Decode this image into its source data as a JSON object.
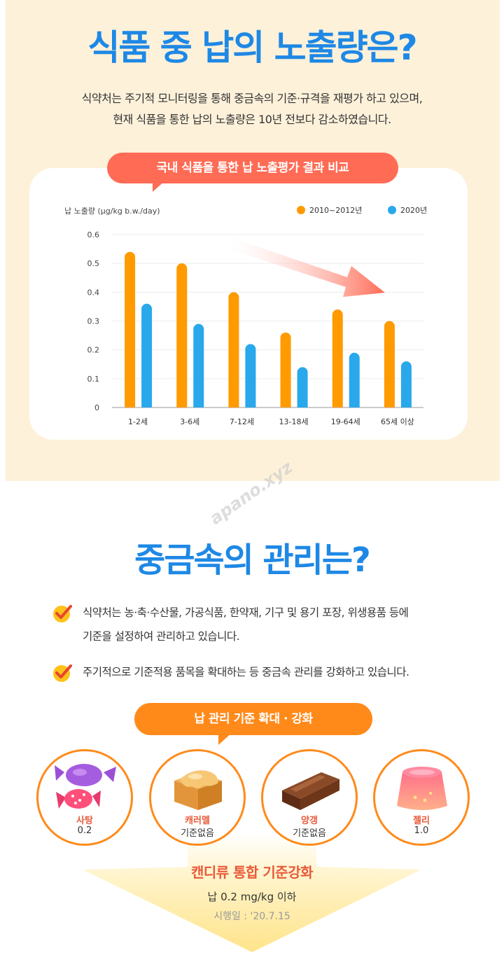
{
  "section1": {
    "title": "식품 중 납의 노출량은?",
    "intro_line1": "식약처는 주기적 모니터링을 통해 중금속의 기준·규격을 재평가 하고 있으며,",
    "intro_line2": "현재 식품을 통한 납의 노출량은 10년 전보다 감소하였습니다.",
    "chart_pill": "국내 식품을 통한 납 노출평가 결과 비교"
  },
  "chart_data": {
    "type": "bar",
    "ylabel": "납 노출량 (μg/kg b.w./day)",
    "xlabel": "",
    "categories": [
      "1-2세",
      "3-6세",
      "7-12세",
      "13-18세",
      "19-64세",
      "65세 이상"
    ],
    "ylim": [
      0,
      0.6
    ],
    "yticks": [
      "0",
      "0.1",
      "0.2",
      "0.3",
      "0.4",
      "0.5",
      "0.6"
    ],
    "legend_position": "top-right",
    "grid": true,
    "series": [
      {
        "name": "2010~2012년",
        "color": "#ff9a00",
        "values": [
          0.54,
          0.5,
          0.4,
          0.26,
          0.34,
          0.3
        ]
      },
      {
        "name": "2020년",
        "color": "#29a8ec",
        "values": [
          0.36,
          0.29,
          0.22,
          0.14,
          0.19,
          0.16
        ]
      }
    ],
    "trend_arrow_color": "#ff6b55"
  },
  "watermark": "apano.xyz",
  "section2": {
    "title": "중금속의 관리는?",
    "bullet1_line1": "식약처는 농·축·수산물, 가공식품, 한약재, 기구 및 용기 포장, 위생용품 등에",
    "bullet1_line2": "기준을 설정하여 관리하고 있습니다.",
    "bullet2": "주기적으로 기준적용 품목을 확대하는 등 중금속 관리를 강화하고 있습니다.",
    "pill": "납 관리 기준 확대 · 강화",
    "items": [
      {
        "label": "사탕",
        "value": "0.2",
        "icon": "candy-icon"
      },
      {
        "label": "캐러멜",
        "value": "기준없음",
        "icon": "caramel-icon"
      },
      {
        "label": "양갱",
        "value": "기준없음",
        "icon": "yanggaeng-icon"
      },
      {
        "label": "젤리",
        "value": "1.0",
        "icon": "jelly-icon"
      }
    ],
    "candy_title": "캔디류 통합 기준강화",
    "candy_standard": "납 0.2 mg/kg 이하",
    "candy_date": "시행일 : '20.7.15"
  },
  "colors": {
    "title_blue": "#1e88e5",
    "accent_red": "#ff6b55",
    "accent_orange": "#ff8a1a",
    "bg_cream": "#fdf1da"
  }
}
